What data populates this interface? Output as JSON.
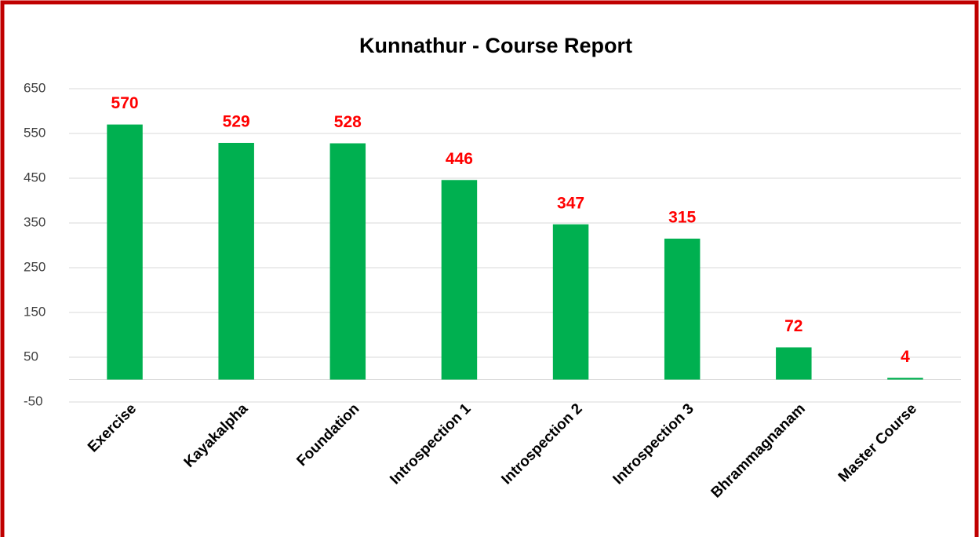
{
  "chart_data": {
    "type": "bar",
    "title": "Kunnathur - Course Report",
    "categories": [
      "Exercise",
      "Kayakalpha",
      "Foundation",
      "Introspection 1",
      "Introspection 2",
      "Introspection 3",
      "Bhrammagnanam",
      "Master Course"
    ],
    "values": [
      570,
      529,
      528,
      446,
      347,
      315,
      72,
      4
    ],
    "color": "#00b050",
    "value_label_color": "#ff0000",
    "ylim": [
      -50,
      650
    ],
    "yticks": [
      -50,
      50,
      150,
      250,
      350,
      450,
      550,
      650
    ],
    "grid": true
  }
}
